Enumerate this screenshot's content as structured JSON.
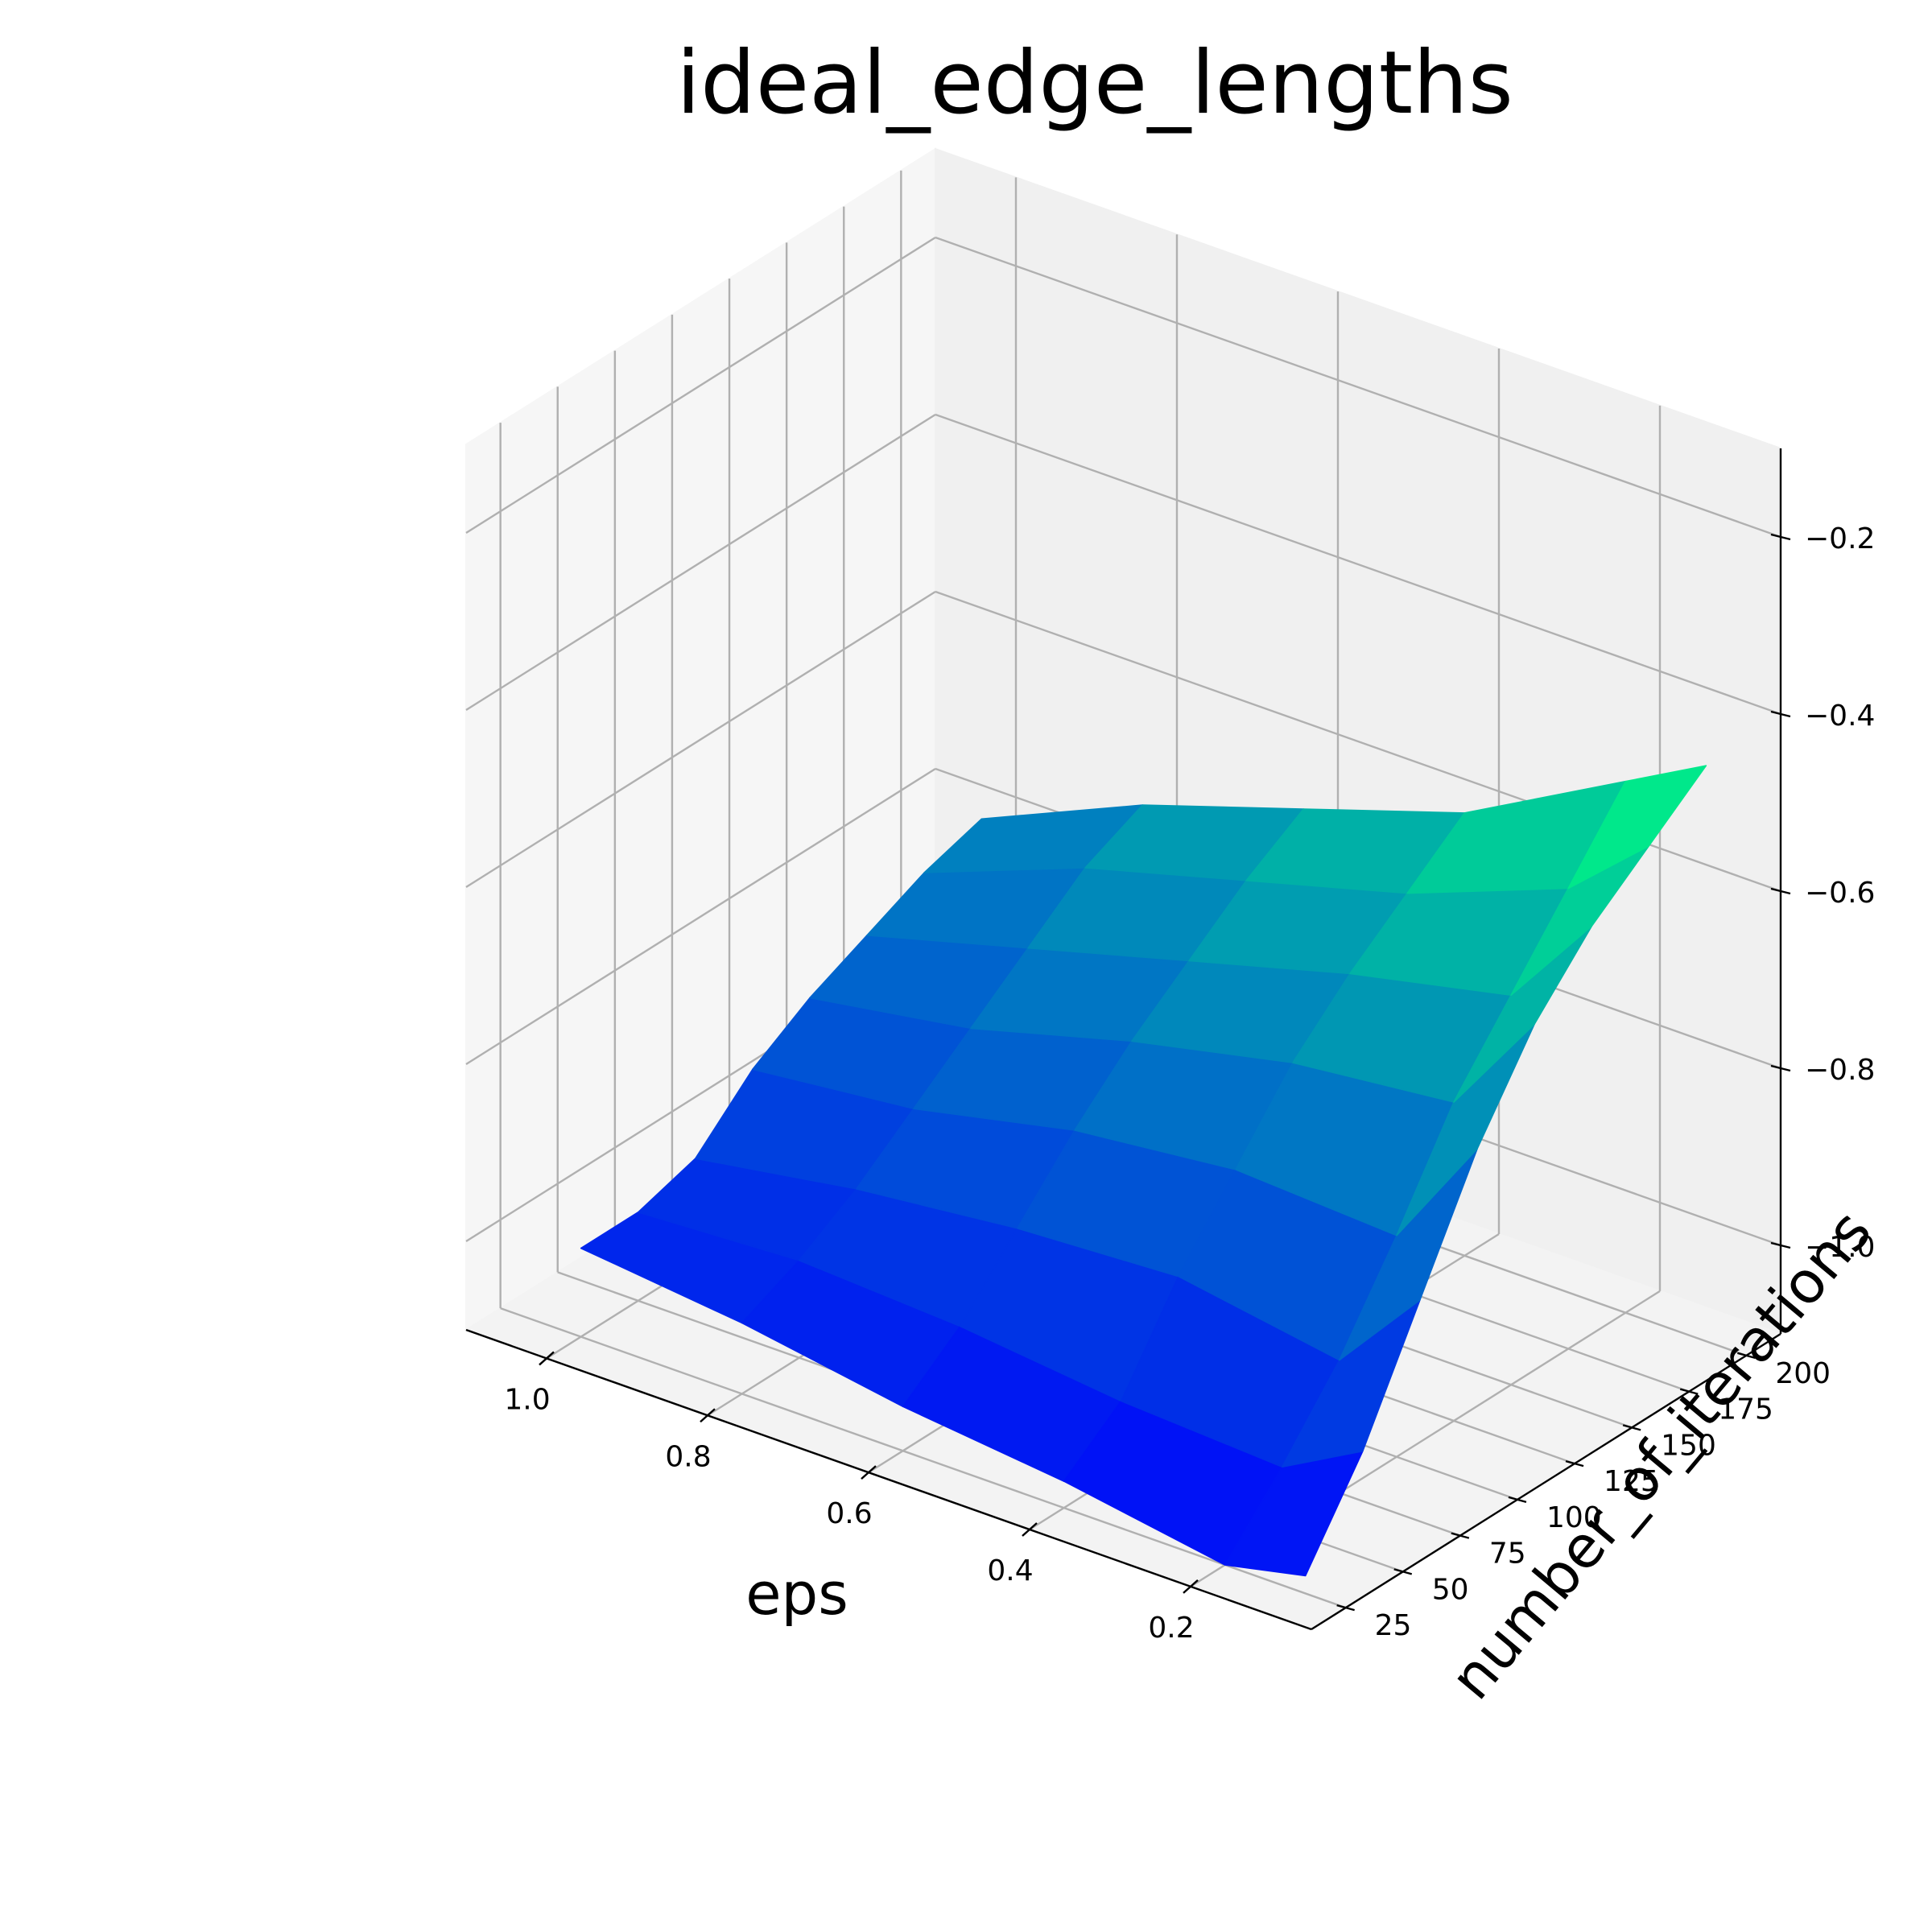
{
  "chart_data": {
    "type": "surface3d",
    "title": "ideal_edge_lengths",
    "xlabel": "eps",
    "ylabel": "number_of_iterations",
    "zlabel": "",
    "colormap": "winter",
    "x_ticks": [
      "0.2",
      "0.4",
      "0.6",
      "0.8",
      "1.0"
    ],
    "y_ticks": [
      "25",
      "50",
      "75",
      "100",
      "125",
      "150",
      "175",
      "200"
    ],
    "z_ticks": [
      "−1.0",
      "−0.8",
      "−0.6",
      "−0.4",
      "−0.2"
    ],
    "xlim": [
      0.05,
      1.1
    ],
    "ylim": [
      10,
      215
    ],
    "zlim": [
      -1.1,
      -0.1
    ],
    "eps": [
      1.0,
      0.8,
      0.6,
      0.4,
      0.2,
      0.1
    ],
    "number_of_iterations": [
      25,
      50,
      75,
      100,
      125,
      150,
      175,
      200
    ],
    "z": [
      [
        -1.0,
        -1.0,
        -0.98,
        -0.92,
        -0.88,
        -0.85,
        -0.82,
        -0.8
      ],
      [
        -1.02,
        -0.99,
        -0.95,
        -0.9,
        -0.85,
        -0.8,
        -0.75,
        -0.72
      ],
      [
        -1.05,
        -1.0,
        -0.93,
        -0.86,
        -0.8,
        -0.75,
        -0.7,
        -0.66
      ],
      [
        -1.07,
        -1.02,
        -0.92,
        -0.84,
        -0.76,
        -0.7,
        -0.65,
        -0.6
      ],
      [
        -1.1,
        -1.03,
        -0.95,
        -0.85,
        -0.74,
        -0.66,
        -0.58,
        -0.5
      ],
      [
        -1.08,
        -0.98,
        -0.85,
        -0.72,
        -0.62,
        -0.55,
        -0.5,
        -0.45
      ]
    ]
  }
}
